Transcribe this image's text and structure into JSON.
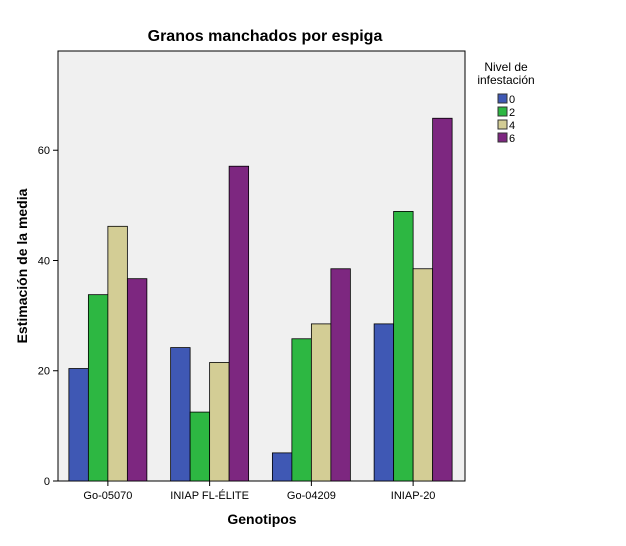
{
  "chart_data": {
    "type": "bar",
    "title": "Granos manchados por espiga",
    "xlabel": "Genotipos",
    "ylabel": "Estimación de la media",
    "categories": [
      "Go-05070",
      "INIAP FL-ÉLITE",
      "Go-04209",
      "INIAP-20"
    ],
    "series": [
      {
        "name": "0",
        "color": "#3f58b4",
        "values": [
          20.4,
          24.2,
          5.1,
          28.5
        ]
      },
      {
        "name": "2",
        "color": "#2db742",
        "values": [
          33.8,
          12.5,
          25.8,
          48.9
        ]
      },
      {
        "name": "4",
        "color": "#d3cd95",
        "values": [
          46.2,
          21.5,
          28.5,
          38.5
        ]
      },
      {
        "name": "6",
        "color": "#7d2780",
        "values": [
          36.7,
          57.1,
          38.5,
          65.8
        ]
      }
    ],
    "ylim": [
      0,
      78
    ],
    "yticks": [
      0,
      20,
      40,
      60
    ],
    "legend_title": "Nivel de infestación",
    "legend_position": "right",
    "grid": false,
    "plot_background": "#f0f0f0"
  }
}
